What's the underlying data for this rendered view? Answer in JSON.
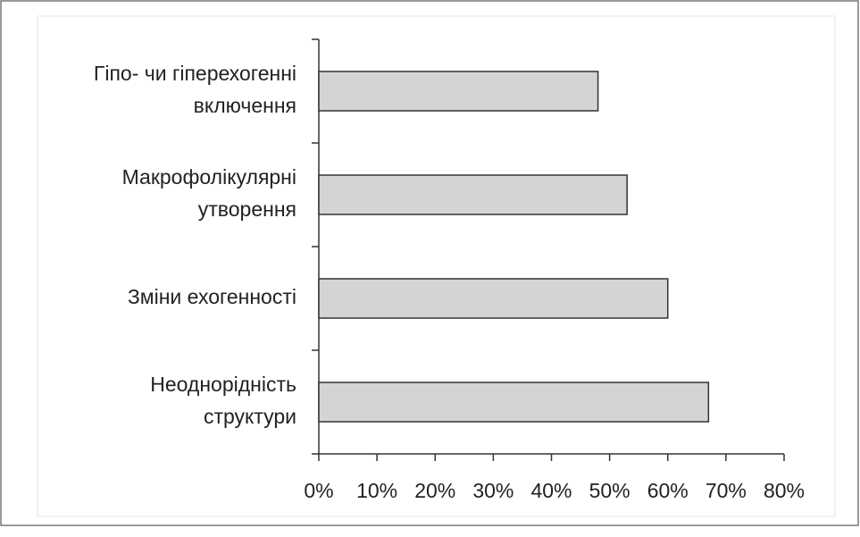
{
  "chart_data": {
    "type": "bar",
    "orientation": "horizontal",
    "categories": [
      [
        "Гіпо- чи гіперехогенні",
        "включення"
      ],
      [
        "Макрофолікулярні",
        "утворення"
      ],
      [
        "Зміни ехогенності"
      ],
      [
        "Неоднорідність",
        "структури"
      ]
    ],
    "values": [
      48,
      53,
      60,
      67
    ],
    "color": "#d4d4d4",
    "xlim": [
      0,
      80
    ],
    "xticks": [
      {
        "value": 0,
        "label": "0%"
      },
      {
        "value": 10,
        "label": "10%"
      },
      {
        "value": 20,
        "label": "20%"
      },
      {
        "value": 30,
        "label": "30%"
      },
      {
        "value": 40,
        "label": "40%"
      },
      {
        "value": 50,
        "label": "50%"
      },
      {
        "value": 60,
        "label": "60%"
      },
      {
        "value": 70,
        "label": "70%"
      },
      {
        "value": 80,
        "label": "80%"
      }
    ],
    "grid": false
  }
}
